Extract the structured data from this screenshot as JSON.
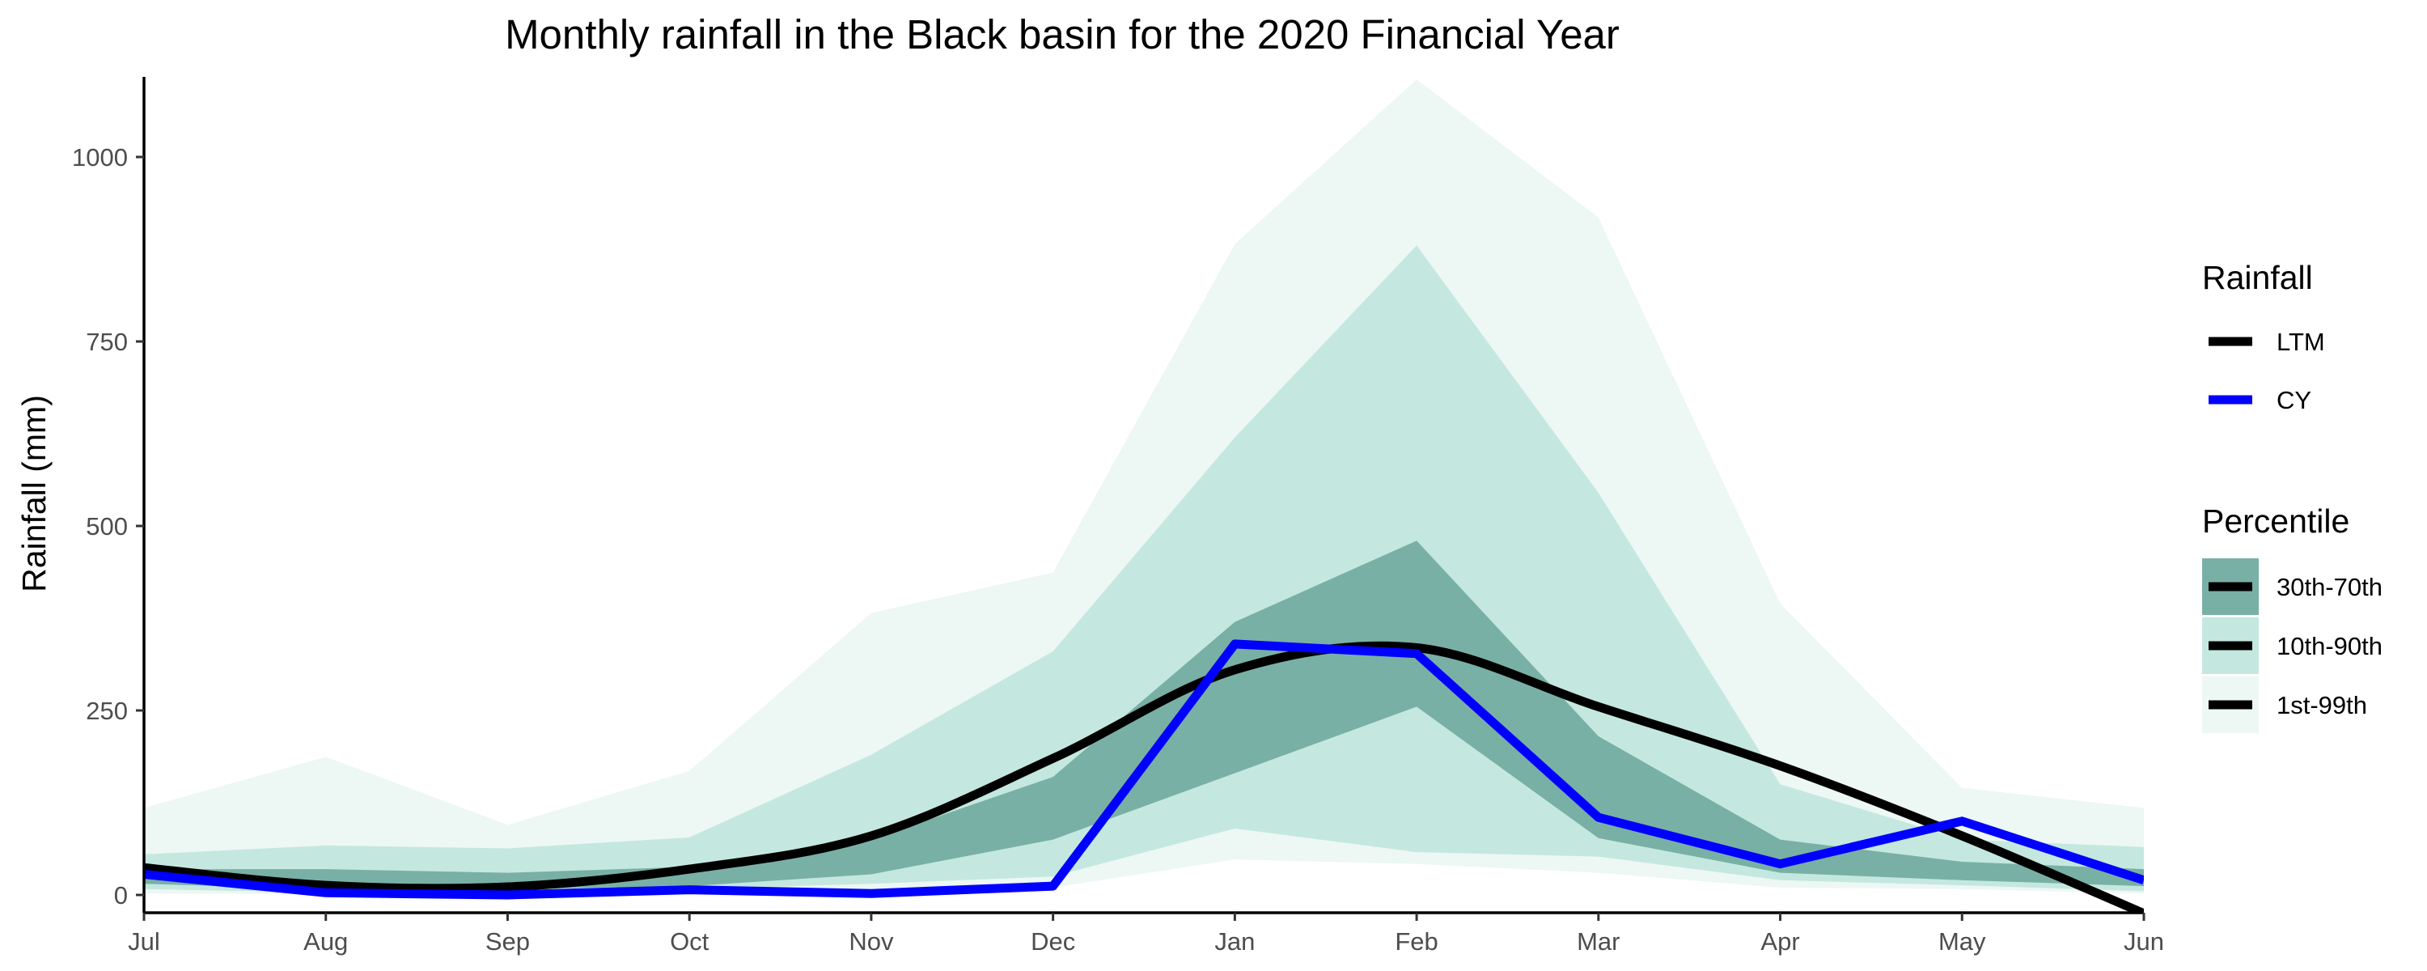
{
  "colors": {
    "band_1_99": "#edf7f4",
    "band_10_90": "#c4e8df",
    "band_30_70": "#79b0a5",
    "ltm": "#000000",
    "cy": "#0000ff",
    "axis": "#000000",
    "tick_text": "#4d4d4d"
  },
  "chart_data": {
    "type": "area",
    "title": "Monthly rainfall in the Black basin for the 2020 Financial Year",
    "xlabel": "",
    "ylabel": "Rainfall (mm)",
    "categories": [
      "Jul",
      "Aug",
      "Sep",
      "Oct",
      "Nov",
      "Dec",
      "Jan",
      "Feb",
      "Mar",
      "Apr",
      "May",
      "Jun"
    ],
    "ylim": [
      -25,
      1110
    ],
    "yticks": [
      0,
      250,
      500,
      750,
      1000
    ],
    "grid": false,
    "legend_position": "right",
    "bands": [
      {
        "name": "1st-99th",
        "color": "#edf7f4",
        "lower": [
          2,
          1,
          1,
          3,
          5,
          10,
          48,
          42,
          30,
          10,
          8,
          2
        ],
        "upper": [
          118,
          187,
          95,
          168,
          382,
          437,
          882,
          1105,
          918,
          395,
          145,
          118
        ]
      },
      {
        "name": "10th-90th",
        "color": "#c4e8df",
        "lower": [
          8,
          3,
          4,
          8,
          15,
          25,
          90,
          58,
          52,
          20,
          13,
          5
        ],
        "upper": [
          55,
          67,
          63,
          78,
          190,
          330,
          620,
          880,
          545,
          150,
          75,
          65
        ]
      },
      {
        "name": "30th-70th",
        "color": "#79b0a5",
        "lower": [
          15,
          8,
          8,
          12,
          28,
          75,
          165,
          255,
          77,
          30,
          20,
          12
        ],
        "upper": [
          35,
          35,
          30,
          38,
          75,
          160,
          370,
          480,
          215,
          75,
          45,
          35
        ]
      }
    ],
    "series": [
      {
        "name": "LTM",
        "color": "#000000",
        "values": [
          37,
          13,
          11,
          35,
          80,
          185,
          305,
          335,
          255,
          175,
          80,
          -25
        ]
      },
      {
        "name": "CY",
        "color": "#0000ff",
        "values": [
          28,
          3,
          0,
          7,
          2,
          12,
          340,
          327,
          105,
          42,
          100,
          20
        ]
      }
    ],
    "legend": {
      "rainfall_title": "Rainfall",
      "rainfall_items": [
        "LTM",
        "CY"
      ],
      "percentile_title": "Percentile",
      "percentile_items": [
        "30th-70th",
        "10th-90th",
        "1st-99th"
      ]
    }
  }
}
